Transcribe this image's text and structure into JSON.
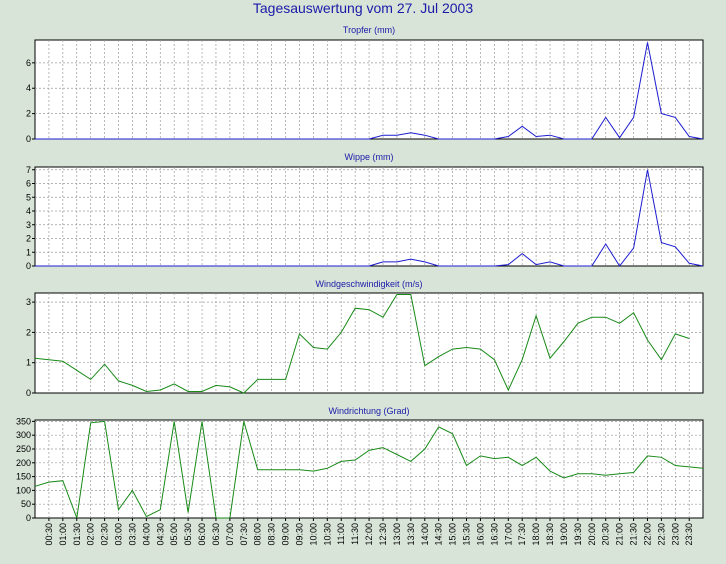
{
  "page": {
    "title": "Tagesauswertung vom 27. Jul 2003"
  },
  "colors": {
    "background": "#d8e4d8",
    "plot_background": "#ffffff",
    "grid": "#9a9a9a",
    "title_text": "#1a1aa8",
    "rain_series": "#1c1cd0",
    "wind_series": "#178a17"
  },
  "chart_data": [
    {
      "type": "line",
      "title": "Tropfer (mm)",
      "color": "#1c1cd0",
      "ylim": [
        0,
        7.8
      ],
      "yticks": [
        0,
        2,
        4,
        6
      ],
      "grid": true,
      "values": [
        0,
        0,
        0,
        0,
        0,
        0,
        0,
        0,
        0,
        0,
        0,
        0,
        0,
        0,
        0,
        0,
        0,
        0,
        0,
        0,
        0,
        0,
        0,
        0,
        0,
        0.3,
        0.3,
        0.5,
        0.3,
        0,
        0,
        0,
        0,
        0,
        0.2,
        1.0,
        0.2,
        0.3,
        0,
        0,
        0,
        1.7,
        0.1,
        1.7,
        7.6,
        2.0,
        1.7,
        0.2,
        0
      ]
    },
    {
      "type": "line",
      "title": "Wippe (mm)",
      "color": "#1c1cd0",
      "ylim": [
        0,
        7.2
      ],
      "yticks": [
        0,
        1,
        2,
        3,
        4,
        5,
        6,
        7
      ],
      "grid": true,
      "values": [
        0,
        0,
        0,
        0,
        0,
        0,
        0,
        0,
        0,
        0,
        0,
        0,
        0,
        0,
        0,
        0,
        0,
        0,
        0,
        0,
        0,
        0,
        0,
        0,
        0,
        0.3,
        0.3,
        0.5,
        0.3,
        0,
        0,
        0,
        0,
        0,
        0.1,
        0.9,
        0.1,
        0.3,
        0,
        0,
        0,
        1.6,
        0,
        1.3,
        7.0,
        1.7,
        1.4,
        0.2,
        0
      ]
    },
    {
      "type": "line",
      "title": "Windgeschwindigkeit (m/s)",
      "color": "#178a17",
      "ylim": [
        0,
        3.3
      ],
      "yticks": [
        0,
        1,
        2,
        3
      ],
      "grid": true,
      "values": [
        1.15,
        1.1,
        1.05,
        0.75,
        0.45,
        0.95,
        0.4,
        0.25,
        0.05,
        0.1,
        0.3,
        0.05,
        0.05,
        0.25,
        0.2,
        0,
        0.45,
        0.45,
        0.45,
        1.95,
        1.5,
        1.45,
        2.0,
        2.8,
        2.75,
        2.5,
        3.25,
        3.25,
        0.9,
        1.2,
        1.45,
        1.5,
        1.45,
        1.1,
        0.1,
        1.1,
        2.55,
        1.15,
        1.7,
        2.3,
        2.5,
        2.5,
        2.3,
        2.65,
        1.75,
        1.1,
        1.95,
        1.8
      ]
    },
    {
      "type": "line",
      "title": "Windrichtung (Grad)",
      "color": "#178a17",
      "ylim": [
        0,
        355
      ],
      "yticks": [
        0,
        50,
        100,
        150,
        200,
        250,
        300,
        350
      ],
      "grid": true,
      "values": [
        115,
        130,
        135,
        0,
        345,
        350,
        30,
        100,
        5,
        30,
        350,
        20,
        350,
        0,
        0,
        350,
        175,
        175,
        175,
        175,
        170,
        180,
        205,
        210,
        245,
        255,
        230,
        205,
        250,
        330,
        305,
        190,
        225,
        215,
        220,
        190,
        220,
        170,
        145,
        160,
        160,
        155,
        160,
        165,
        225,
        220,
        190,
        185,
        180
      ]
    }
  ],
  "x_axis": {
    "ticks": [
      "00:30",
      "01:00",
      "01:30",
      "02:00",
      "02:30",
      "03:00",
      "03:30",
      "04:00",
      "04:30",
      "05:00",
      "05:30",
      "06:00",
      "06:30",
      "07:00",
      "07:30",
      "08:00",
      "08:30",
      "09:00",
      "09:30",
      "10:00",
      "10:30",
      "11:00",
      "11:30",
      "12:00",
      "12:30",
      "13:00",
      "13:30",
      "14:00",
      "14:30",
      "15:00",
      "15:30",
      "16:00",
      "16:30",
      "17:00",
      "17:30",
      "18:00",
      "18:30",
      "19:00",
      "19:30",
      "20:00",
      "20:30",
      "21:00",
      "21:30",
      "22:00",
      "22:30",
      "23:00",
      "23:30"
    ]
  }
}
